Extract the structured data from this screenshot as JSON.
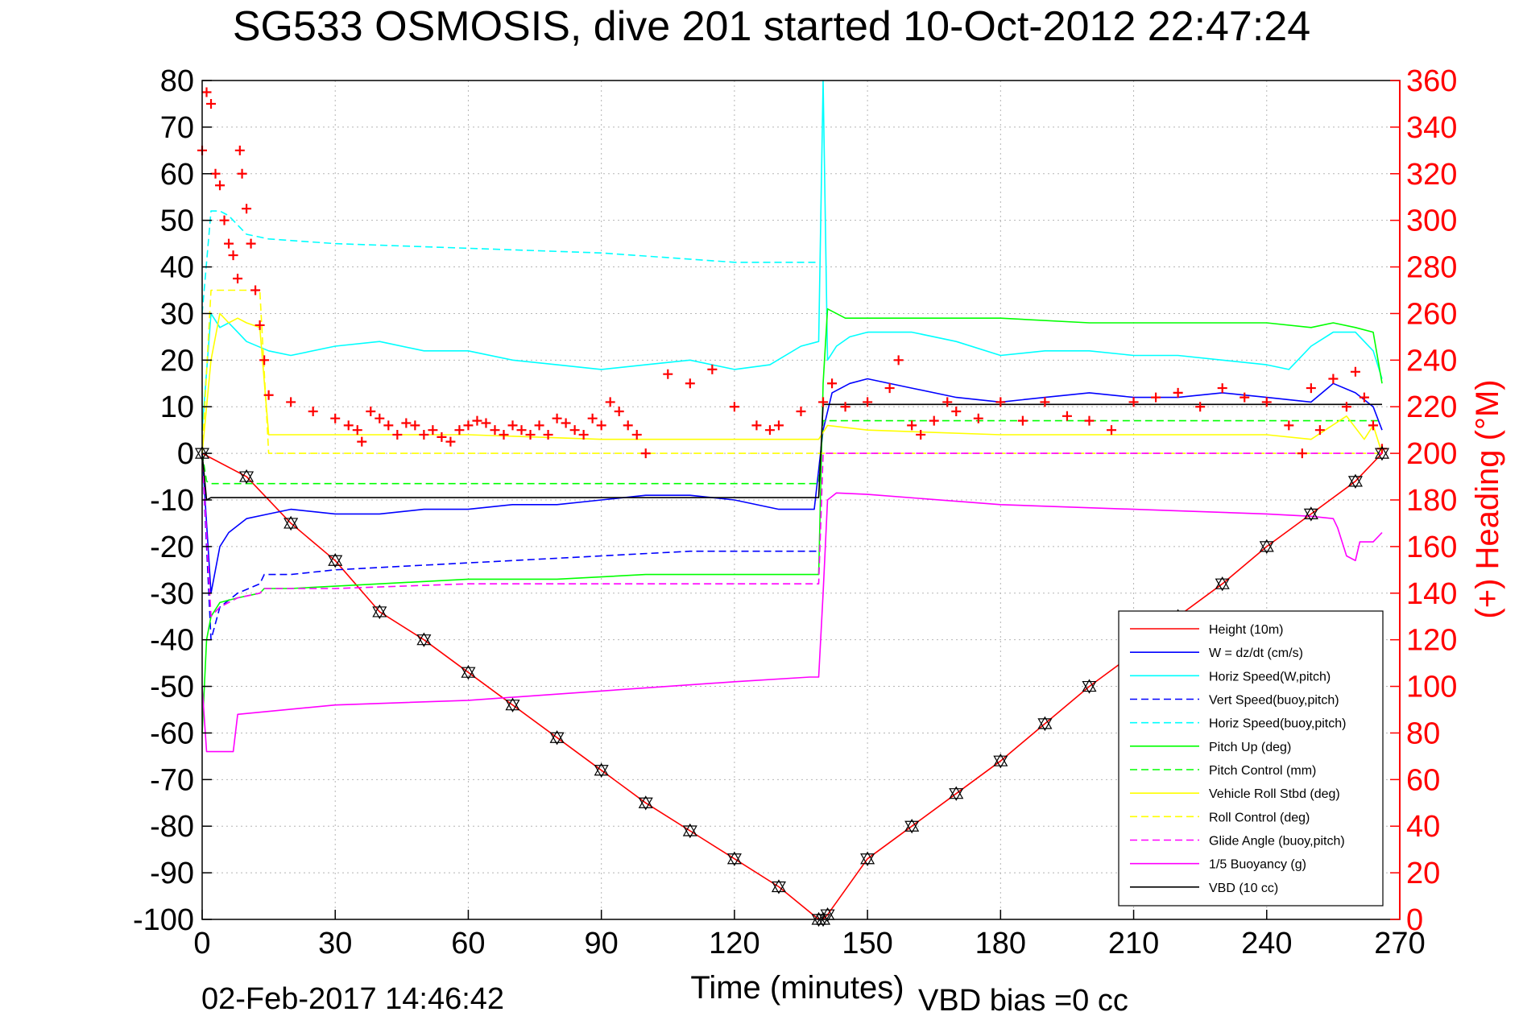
{
  "chart_data": {
    "type": "line",
    "title": "SG533 OSMOSIS, dive 201 started 10-Oct-2012 22:47:24",
    "xlabel": "Time (minutes)",
    "ylabel_right": "(+) Heading (°M)",
    "footer_date": "02-Feb-2017 14:46:42",
    "footer_bias": "VBD bias =0 cc",
    "xlim": [
      0,
      270
    ],
    "ylim": [
      -100,
      80
    ],
    "ylim_right": [
      0,
      360
    ],
    "x_ticks": [
      0,
      30,
      60,
      90,
      120,
      150,
      180,
      210,
      240,
      270
    ],
    "y_ticks": [
      -100,
      -90,
      -80,
      -70,
      -60,
      -50,
      -40,
      -30,
      -20,
      -10,
      0,
      10,
      20,
      30,
      40,
      50,
      60,
      70,
      80
    ],
    "y_right_ticks": [
      0,
      20,
      40,
      60,
      80,
      100,
      120,
      140,
      160,
      180,
      200,
      220,
      240,
      260,
      280,
      300,
      320,
      340,
      360
    ],
    "grid": true,
    "legend_position": "bottom-right",
    "colors": {
      "red": "#ff0000",
      "blue": "#0000ff",
      "cyan": "#00ffff",
      "green": "#00ff00",
      "yellow": "#ffff00",
      "magenta": "#ff00ff",
      "black": "#000000"
    },
    "series": [
      {
        "name": "Height (10m)",
        "color": "#ff0000",
        "dash": "solid",
        "x": [
          0,
          10,
          20,
          30,
          40,
          50,
          60,
          70,
          80,
          90,
          100,
          110,
          120,
          130,
          139,
          140,
          141,
          150,
          160,
          170,
          180,
          190,
          200,
          210,
          220,
          230,
          240,
          250,
          260,
          266
        ],
        "y": [
          0,
          -5,
          -15,
          -23,
          -34,
          -40,
          -47,
          -54,
          -61,
          -68,
          -75,
          -81,
          -87,
          -93,
          -100,
          -100,
          -99,
          -87,
          -80,
          -73,
          -66,
          -58,
          -50,
          -43,
          -35,
          -28,
          -20,
          -13,
          -6,
          0
        ]
      },
      {
        "name": "W = dz/dt (cm/s)",
        "color": "#0000ff",
        "dash": "solid",
        "x": [
          0,
          2,
          4,
          6,
          10,
          15,
          20,
          30,
          40,
          50,
          60,
          70,
          80,
          90,
          100,
          110,
          120,
          130,
          138,
          140,
          142,
          146,
          150,
          160,
          170,
          180,
          190,
          200,
          210,
          220,
          230,
          240,
          250,
          255,
          260,
          264,
          266
        ],
        "y": [
          0,
          -30,
          -20,
          -17,
          -14,
          -13,
          -12,
          -13,
          -13,
          -12,
          -12,
          -11,
          -11,
          -10,
          -9,
          -9,
          -10,
          -12,
          -12,
          5,
          13,
          15,
          16,
          14,
          12,
          11,
          12,
          13,
          12,
          12,
          13,
          12,
          11,
          15,
          13,
          10,
          5
        ]
      },
      {
        "name": "Horiz Speed(W,pitch)",
        "color": "#00ffff",
        "dash": "solid",
        "x": [
          0,
          2,
          4,
          6,
          8,
          10,
          15,
          20,
          30,
          40,
          50,
          60,
          70,
          80,
          90,
          100,
          110,
          120,
          128,
          135,
          139,
          140,
          141,
          143,
          146,
          150,
          160,
          170,
          180,
          190,
          200,
          210,
          220,
          230,
          240,
          245,
          250,
          255,
          260,
          264,
          266
        ],
        "y": [
          5,
          30,
          27,
          28,
          26,
          24,
          22,
          21,
          23,
          24,
          22,
          22,
          20,
          19,
          18,
          19,
          20,
          18,
          19,
          23,
          24,
          80,
          20,
          23,
          25,
          26,
          26,
          24,
          21,
          22,
          22,
          21,
          21,
          20,
          19,
          18,
          23,
          26,
          26,
          22,
          16
        ]
      },
      {
        "name": "Vert Speed(buoy,pitch)",
        "color": "#0000ff",
        "dash": "dashed",
        "x": [
          0,
          2,
          4,
          8,
          13,
          14,
          20,
          30,
          50,
          70,
          90,
          110,
          130,
          139
        ],
        "y": [
          0,
          -40,
          -33,
          -30,
          -28,
          -26,
          -26,
          -25,
          -24,
          -23,
          -22,
          -21,
          -21,
          -21
        ]
      },
      {
        "name": "Horiz Speed(buoy,pitch)",
        "color": "#00ffff",
        "dash": "dashed",
        "x": [
          0,
          2,
          4,
          6,
          10,
          15,
          30,
          60,
          90,
          120,
          139
        ],
        "y": [
          30,
          52,
          52,
          51,
          47,
          46,
          45,
          44,
          43,
          41,
          41
        ]
      },
      {
        "name": "Pitch Up (deg)",
        "color": "#00ff00",
        "dash": "solid",
        "x": [
          0,
          1,
          2,
          4,
          8,
          13,
          14,
          20,
          40,
          60,
          80,
          100,
          120,
          139,
          140,
          141,
          143,
          145,
          150,
          160,
          170,
          180,
          200,
          220,
          240,
          250,
          255,
          260,
          264,
          266
        ],
        "y": [
          -60,
          -40,
          -35,
          -32,
          -31,
          -30,
          -29,
          -29,
          -28,
          -27,
          -27,
          -26,
          -26,
          -26,
          15,
          31,
          30,
          29,
          29,
          29,
          29,
          29,
          28,
          28,
          28,
          27,
          28,
          27,
          26,
          15
        ]
      },
      {
        "name": "Pitch Control (mm)",
        "color": "#00ff00",
        "dash": "dashed",
        "x": [
          0,
          1,
          2,
          139,
          140,
          266
        ],
        "y": [
          0,
          -6,
          -6.5,
          -6.5,
          7,
          7
        ]
      },
      {
        "name": "Vehicle Roll Stbd (deg)",
        "color": "#ffff00",
        "dash": "solid",
        "x": [
          0,
          2,
          4,
          6,
          8,
          10,
          13,
          15,
          30,
          60,
          90,
          120,
          139,
          141,
          150,
          180,
          210,
          240,
          250,
          258,
          262,
          264,
          266
        ],
        "y": [
          0,
          20,
          30,
          28,
          29,
          28,
          27,
          4,
          4,
          4,
          3,
          3,
          3,
          6,
          5,
          4,
          4,
          4,
          3,
          8,
          3,
          6,
          0
        ]
      },
      {
        "name": "Roll Control (deg)",
        "color": "#ffff00",
        "dash": "dashed",
        "x": [
          0,
          2,
          3,
          7,
          8,
          12,
          13,
          15,
          139,
          140,
          266
        ],
        "y": [
          0,
          35,
          35,
          35,
          35,
          35,
          35,
          0,
          0,
          0,
          0
        ]
      },
      {
        "name": "Glide Angle (buoy,pitch)",
        "color": "#ff00ff",
        "dash": "dashed",
        "x": [
          0,
          2,
          4,
          8,
          13,
          14,
          30,
          60,
          90,
          120,
          139,
          140,
          266
        ],
        "y": [
          0,
          -35,
          -33,
          -31,
          -30,
          -29,
          -29,
          -28,
          -28,
          -28,
          -28,
          0,
          0
        ]
      },
      {
        "name": "1/5 Buoyancy (g)",
        "color": "#ff00ff",
        "dash": "solid",
        "x": [
          0,
          1,
          2,
          3,
          7,
          8,
          30,
          60,
          90,
          120,
          137,
          139,
          140,
          141,
          143,
          150,
          180,
          210,
          240,
          250,
          255,
          256,
          258,
          260,
          261,
          264,
          266
        ],
        "y": [
          -50,
          -64,
          -64,
          -64,
          -64,
          -56,
          -54,
          -53,
          -51,
          -49,
          -48,
          -48,
          -30,
          -10,
          -8.5,
          -8.8,
          -11,
          -12,
          -13,
          -13.5,
          -14,
          -16,
          -22,
          -23,
          -19,
          -19,
          -17
        ]
      },
      {
        "name": "VBD (10 cc)",
        "color": "#000000",
        "dash": "solid",
        "x": [
          0,
          1,
          2,
          139,
          140,
          266
        ],
        "y": [
          0,
          -10,
          -9.5,
          -9.5,
          10.5,
          10.5
        ]
      }
    ],
    "heading": {
      "name": "(+) Heading (°M)",
      "color": "#ff0000",
      "x": [
        0,
        1,
        2,
        3,
        4,
        5,
        6,
        7,
        8,
        8.5,
        9,
        10,
        11,
        12,
        13,
        14,
        15,
        20,
        25,
        30,
        33,
        35,
        36,
        38,
        40,
        42,
        44,
        46,
        48,
        50,
        52,
        54,
        56,
        58,
        60,
        62,
        64,
        66,
        68,
        70,
        72,
        74,
        76,
        78,
        80,
        82,
        84,
        86,
        88,
        90,
        92,
        94,
        96,
        98,
        100,
        105,
        110,
        115,
        120,
        125,
        128,
        130,
        135,
        140,
        142,
        145,
        150,
        155,
        157,
        160,
        162,
        165,
        168,
        170,
        175,
        180,
        185,
        190,
        195,
        200,
        205,
        210,
        215,
        220,
        225,
        230,
        235,
        240,
        245,
        248,
        250,
        252,
        255,
        258,
        260,
        262,
        264,
        266
      ],
      "y": [
        330,
        355,
        350,
        320,
        315,
        300,
        290,
        285,
        275,
        330,
        320,
        305,
        290,
        270,
        255,
        240,
        225,
        222,
        218,
        215,
        212,
        210,
        205,
        218,
        215,
        212,
        208,
        213,
        212,
        208,
        210,
        207,
        205,
        210,
        212,
        214,
        213,
        210,
        208,
        212,
        210,
        208,
        212,
        208,
        215,
        213,
        210,
        208,
        215,
        212,
        222,
        218,
        212,
        208,
        200,
        234,
        230,
        236,
        220,
        212,
        210,
        212,
        218,
        222,
        230,
        220,
        222,
        228,
        240,
        212,
        208,
        214,
        222,
        218,
        215,
        222,
        214,
        222,
        216,
        214,
        210,
        222,
        224,
        226,
        220,
        228,
        224,
        222,
        212,
        200,
        228,
        210,
        232,
        220,
        235,
        224,
        212,
        202
      ]
    }
  }
}
